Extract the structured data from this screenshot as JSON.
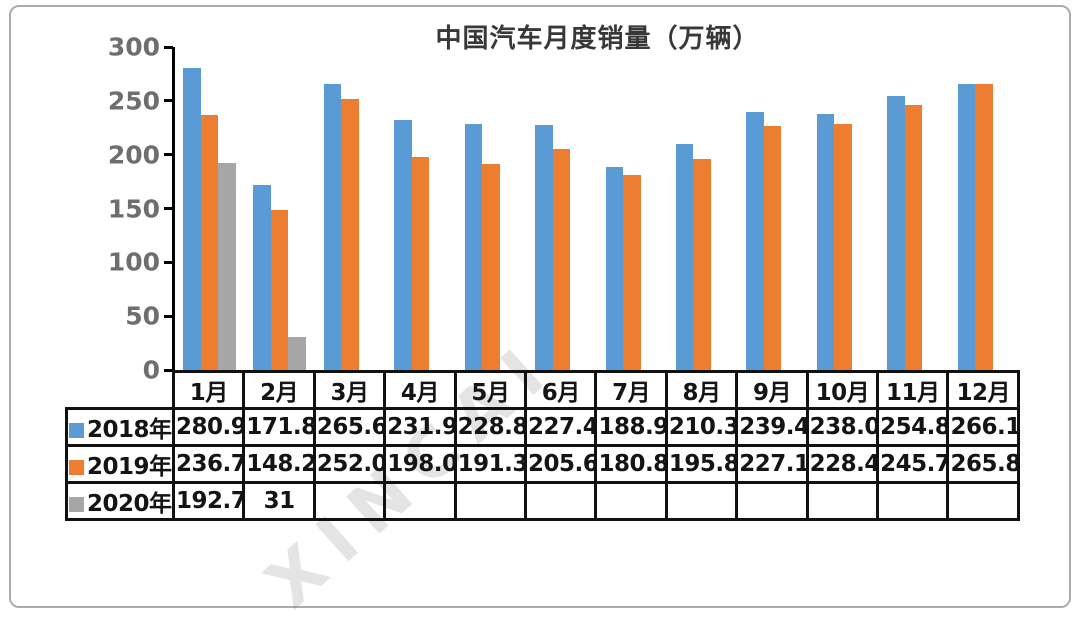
{
  "chart_data": {
    "type": "bar",
    "title": "中国汽车月度销量（万辆）",
    "xlabel": "",
    "ylabel": "",
    "ylim": [
      0,
      300
    ],
    "yticks": [
      300,
      250,
      200,
      150,
      100,
      50,
      0
    ],
    "grid": false,
    "legend_position": "table-left",
    "categories": [
      "1月",
      "2月",
      "3月",
      "4月",
      "5月",
      "6月",
      "7月",
      "8月",
      "9月",
      "10月",
      "11月",
      "12月"
    ],
    "series": [
      {
        "name": "2018年",
        "color": "#5B9BD5",
        "values": [
          280.9,
          171.8,
          265.6,
          231.9,
          228.8,
          227.4,
          188.9,
          210.3,
          239.4,
          238.0,
          254.8,
          266.1
        ],
        "labels": [
          "280.9",
          "171.8",
          "265.6",
          "231.9",
          "228.8",
          "227.4",
          "188.9",
          "210.3",
          "239.4",
          "238.0",
          "254.8",
          "266.1"
        ]
      },
      {
        "name": "2019年",
        "color": "#ED7D31",
        "values": [
          236.7,
          148.2,
          252.0,
          198.0,
          191.3,
          205.6,
          180.8,
          195.8,
          227.1,
          228.4,
          245.7,
          265.8
        ],
        "labels": [
          "236.7",
          "148.2",
          "252.0",
          "198.0",
          "191.3",
          "205.6",
          "180.8",
          "195.8",
          "227.1",
          "228.4",
          "245.7",
          "265.8"
        ]
      },
      {
        "name": "2020年",
        "color": "#A6A6A6",
        "values": [
          192.7,
          31,
          null,
          null,
          null,
          null,
          null,
          null,
          null,
          null,
          null,
          null
        ],
        "labels": [
          "192.7",
          "31",
          "",
          "",
          "",
          "",
          "",
          "",
          "",
          "",
          "",
          ""
        ]
      }
    ],
    "watermark": "XINCAI"
  }
}
